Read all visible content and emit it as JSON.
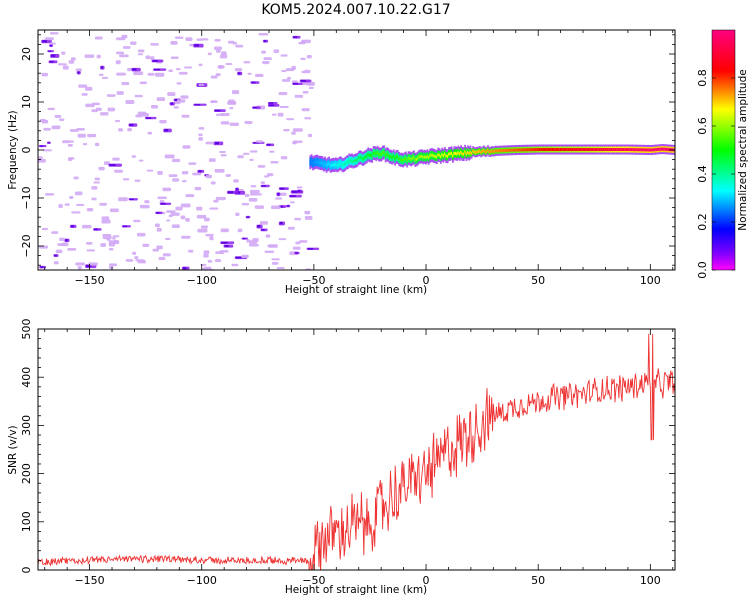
{
  "title": "KOM5.2024.007.10.22.G17",
  "chart_data": [
    {
      "type": "heatmap",
      "xlabel": "Height of straight line (km)",
      "ylabel": "Frequency (Hz)",
      "xlim": [
        -173,
        111
      ],
      "ylim": [
        -25,
        25
      ],
      "xticks": [
        -150,
        -100,
        -50,
        0,
        50,
        100
      ],
      "yticks": [
        -20,
        -10,
        0,
        10,
        20
      ],
      "noise_region": {
        "x": [
          -173,
          -52
        ],
        "y": [
          -25,
          25
        ],
        "note_values": "sparse low amplitude (0.05-0.2)"
      },
      "signal_trace": {
        "x": [
          -52,
          -45,
          -40,
          -35,
          -30,
          -25,
          -20,
          -15,
          -10,
          -5,
          0,
          10,
          20,
          30,
          40,
          50,
          60,
          70,
          80,
          90,
          100,
          105,
          111
        ],
        "freq": [
          -2.5,
          -3.0,
          -3.3,
          -2.5,
          -1.8,
          -1.0,
          -0.6,
          -1.5,
          -2.0,
          -1.8,
          -1.4,
          -1.0,
          -0.5,
          -0.2,
          0.0,
          0.1,
          0.1,
          0.1,
          0.1,
          0.1,
          0.0,
          0.2,
          0.0
        ],
        "amplitude": [
          0.25,
          0.3,
          0.35,
          0.4,
          0.45,
          0.5,
          0.55,
          0.5,
          0.55,
          0.6,
          0.62,
          0.66,
          0.7,
          0.74,
          0.78,
          0.82,
          0.85,
          0.88,
          0.92,
          0.96,
          0.98,
          0.99,
          0.99
        ]
      },
      "colorbar": {
        "label": "Normalized spectral amplitude",
        "range": [
          0,
          1
        ],
        "ticks": [
          "0.0",
          "0.2",
          "0.4",
          "0.6",
          "0.8"
        ]
      }
    },
    {
      "type": "line",
      "xlabel": "Height of straight line (km)",
      "ylabel": "SNR (v/v)",
      "xlim": [
        -173,
        111
      ],
      "ylim": [
        0,
        500
      ],
      "xticks": [
        -150,
        -100,
        -50,
        0,
        50,
        100
      ],
      "yticks": [
        0,
        100,
        200,
        300,
        400,
        500
      ],
      "color": "#ee3333",
      "x": [
        -173,
        -150,
        -130,
        -110,
        -90,
        -70,
        -52,
        -50,
        -45,
        -40,
        -35,
        -30,
        -25,
        -20,
        -15,
        -10,
        -5,
        0,
        5,
        10,
        15,
        20,
        25,
        30,
        35,
        40,
        50,
        60,
        70,
        80,
        90,
        95,
        100,
        105,
        111
      ],
      "y": [
        15,
        18,
        22,
        20,
        18,
        18,
        18,
        40,
        70,
        80,
        85,
        90,
        100,
        130,
        150,
        170,
        185,
        200,
        220,
        250,
        270,
        290,
        305,
        320,
        330,
        340,
        350,
        360,
        365,
        375,
        380,
        385,
        395,
        385,
        395
      ]
    }
  ]
}
